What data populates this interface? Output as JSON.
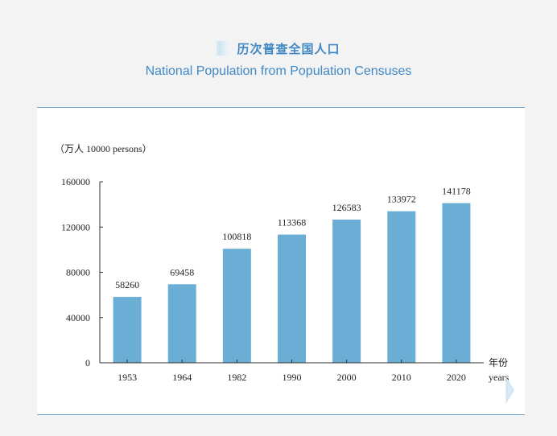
{
  "header": {
    "title_zh": "历次普查全国人口",
    "title_en": "National Population from Population Censuses"
  },
  "chart_data": {
    "type": "bar",
    "unit_label": "（万人 10000 persons）",
    "categories": [
      "1953",
      "1964",
      "1982",
      "1990",
      "2000",
      "2010",
      "2020"
    ],
    "values": [
      58260,
      69458,
      100818,
      113368,
      126583,
      133972,
      141178
    ],
    "ylim": [
      0,
      160000
    ],
    "yticks": [
      0,
      40000,
      80000,
      120000,
      160000
    ],
    "x_axis_unit_zh": "年份",
    "x_axis_unit_en": "years",
    "data_labels": true,
    "grid": false,
    "bar_color": "#6aaed6"
  },
  "decor": {
    "arrow_icon": "chevron-right-icon"
  }
}
